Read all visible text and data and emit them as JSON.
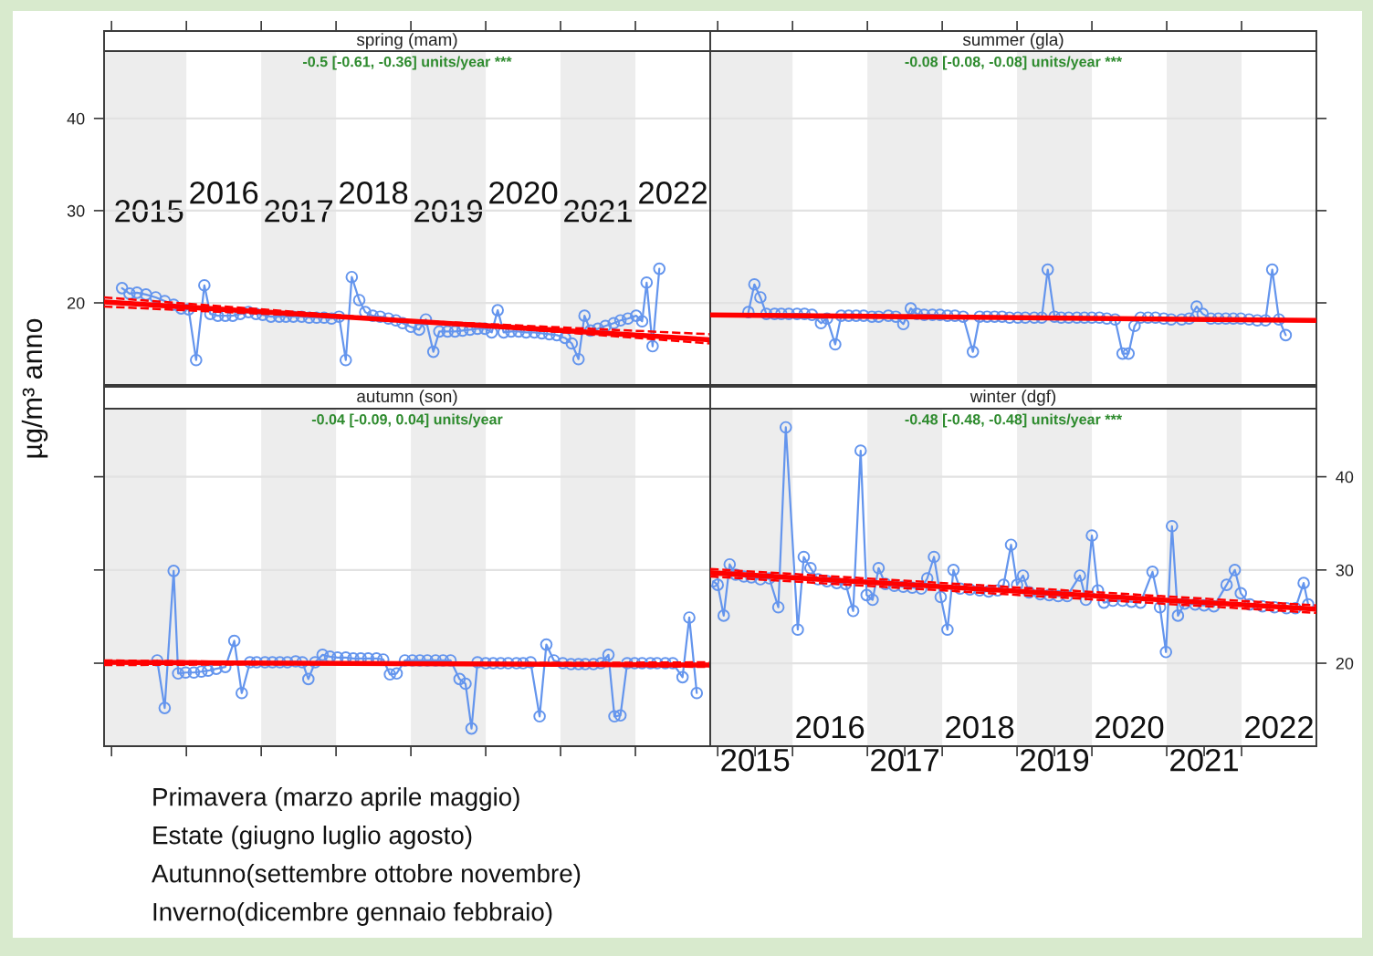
{
  "chart_data": [
    {
      "type": "line",
      "title": "spring (mam)",
      "subtitle": "-0.5 [-0.61, -0.36] units/year ***",
      "ylabel": "µg/m³ anno",
      "xlim": [
        2014.9,
        2023.0
      ],
      "xticks": [
        {
          "value": 2015,
          "label": null
        },
        {
          "value": 2015.5,
          "label": "2015"
        },
        {
          "value": 2016,
          "label": null
        },
        {
          "value": 2017,
          "label": null
        },
        {
          "value": 2017.5,
          "label": "2017"
        },
        {
          "value": 2018,
          "label": null
        },
        {
          "value": 2019,
          "label": null
        },
        {
          "value": 2019.5,
          "label": "2019"
        },
        {
          "value": 2020,
          "label": null
        },
        {
          "value": 2021,
          "label": null
        },
        {
          "value": 2021.5,
          "label": "2021"
        },
        {
          "value": 2022,
          "label": null
        }
      ],
      "x2lim": [
        2014.9,
        2023.0
      ],
      "x2ticks": [
        {
          "value": 2016.5,
          "label": "2016"
        },
        {
          "value": 2018.5,
          "label": "2018"
        },
        {
          "value": 2020.5,
          "label": "2020"
        },
        {
          "value": 2022.5,
          "label": "2022"
        }
      ],
      "ylim": [
        11.1,
        47.3
      ],
      "yticks": [
        20,
        30,
        40
      ],
      "grid": "y",
      "bands": [
        {
          "axis": "x",
          "from": 2014.9,
          "to": 2016,
          "color": "#ededed"
        },
        {
          "axis": "x",
          "from": 2017,
          "to": 2018,
          "color": "#ededed"
        },
        {
          "axis": "x",
          "from": 2019,
          "to": 2020,
          "color": "#ededed"
        },
        {
          "axis": "x",
          "from": 2021,
          "to": 2022,
          "color": "#ededed"
        }
      ],
      "series": [
        {
          "color": "#6495ed",
          "marker": "circle",
          "line_style": "solid",
          "x": [
            2015.14,
            2015.24,
            2015.34,
            2015.46,
            2015.59,
            2015.71,
            2015.83,
            2015.93,
            2016.03,
            2016.13,
            2016.24,
            2016.32,
            2016.42,
            2016.52,
            2016.62,
            2016.72,
            2016.83,
            2016.93,
            2017.02,
            2017.13,
            2017.24,
            2017.33,
            2017.43,
            2017.54,
            2017.64,
            2017.74,
            2017.84,
            2017.94,
            2018.04,
            2018.13,
            2018.21,
            2018.31,
            2018.39,
            2018.49,
            2018.59,
            2018.7,
            2018.8,
            2018.89,
            2019.0,
            2019.11,
            2019.2,
            2019.3,
            2019.38,
            2019.49,
            2019.59,
            2019.69,
            2019.79,
            2019.89,
            2019.99,
            2020.08,
            2020.16,
            2020.24,
            2020.34,
            2020.44,
            2020.54,
            2020.65,
            2020.75,
            2020.85,
            2020.95,
            2021.06,
            2021.15,
            2021.24,
            2021.32,
            2021.4,
            2021.5,
            2021.6,
            2021.71,
            2021.8,
            2021.9,
            2022.01,
            2022.09,
            2022.15,
            2022.23,
            2022.32
          ],
          "values": [
            21.6,
            21.0,
            21.1,
            20.9,
            20.6,
            20.2,
            19.8,
            19.4,
            19.3,
            13.8,
            21.9,
            18.8,
            18.6,
            18.6,
            18.6,
            18.8,
            19.0,
            18.8,
            18.7,
            18.5,
            18.5,
            18.5,
            18.5,
            18.5,
            18.4,
            18.4,
            18.4,
            18.3,
            18.5,
            13.8,
            22.8,
            20.3,
            19.0,
            18.6,
            18.5,
            18.3,
            18.1,
            17.8,
            17.4,
            17.1,
            18.2,
            14.7,
            16.9,
            16.9,
            16.9,
            17.0,
            17.1,
            17.2,
            17.2,
            16.8,
            19.2,
            16.8,
            16.9,
            16.9,
            16.8,
            16.8,
            16.7,
            16.6,
            16.5,
            16.2,
            15.6,
            13.9,
            18.6,
            17.0,
            17.2,
            17.5,
            17.8,
            18.1,
            18.3,
            18.6,
            18.0,
            22.2,
            15.3,
            23.7
          ]
        },
        {
          "color": "#ff0000",
          "marker": "none",
          "line_style": "solid",
          "x": [
            2014.9,
            2023.0
          ],
          "values": [
            20.1,
            16.0
          ]
        },
        {
          "color": "#ff0000",
          "marker": "none",
          "line_style": "dashed",
          "x": [
            2014.9,
            2023.0
          ],
          "values": [
            20.6,
            15.6
          ]
        },
        {
          "color": "#ff0000",
          "marker": "none",
          "line_style": "dashed",
          "x": [
            2014.9,
            2023.0
          ],
          "values": [
            19.6,
            16.6
          ]
        }
      ]
    },
    {
      "type": "line",
      "title": "summer (gla)",
      "subtitle": "-0.08 [-0.08, -0.08] units/year ***",
      "xlim": [
        2014.9,
        2023.0
      ],
      "xticks": [
        {
          "value": 2015,
          "label": null
        },
        {
          "value": 2016,
          "label": null
        },
        {
          "value": 2017,
          "label": null
        },
        {
          "value": 2018,
          "label": null
        },
        {
          "value": 2019,
          "label": null
        },
        {
          "value": 2020,
          "label": null
        },
        {
          "value": 2021,
          "label": null
        },
        {
          "value": 2022,
          "label": null
        }
      ],
      "ylim": [
        11.1,
        47.3
      ],
      "yticks": [
        20,
        30,
        40
      ],
      "tick_labels": false,
      "grid": "y",
      "bands": [
        {
          "axis": "x",
          "from": 2014.9,
          "to": 2016,
          "color": "#ededed"
        },
        {
          "axis": "x",
          "from": 2017,
          "to": 2018,
          "color": "#ededed"
        },
        {
          "axis": "x",
          "from": 2019,
          "to": 2020,
          "color": "#ededed"
        },
        {
          "axis": "x",
          "from": 2021,
          "to": 2022,
          "color": "#ededed"
        }
      ],
      "series": [
        {
          "color": "#6495ed",
          "marker": "circle",
          "line_style": "solid",
          "x": [
            2015.41,
            2015.49,
            2015.57,
            2015.65,
            2015.76,
            2015.85,
            2015.95,
            2016.06,
            2016.16,
            2016.26,
            2016.38,
            2016.46,
            2016.57,
            2016.65,
            2016.75,
            2016.85,
            2016.95,
            2017.06,
            2017.15,
            2017.28,
            2017.38,
            2017.48,
            2017.58,
            2017.66,
            2017.76,
            2017.87,
            2017.97,
            2018.07,
            2018.17,
            2018.28,
            2018.41,
            2018.5,
            2018.6,
            2018.7,
            2018.8,
            2018.9,
            2019.01,
            2019.11,
            2019.23,
            2019.33,
            2019.41,
            2019.5,
            2019.59,
            2019.69,
            2019.8,
            2019.9,
            2020.0,
            2020.1,
            2020.2,
            2020.31,
            2020.41,
            2020.49,
            2020.57,
            2020.65,
            2020.75,
            2020.85,
            2020.96,
            2021.06,
            2021.2,
            2021.3,
            2021.4,
            2021.48,
            2021.59,
            2021.69,
            2021.79,
            2021.89,
            2021.99,
            2022.1,
            2022.21,
            2022.32,
            2022.41,
            2022.5,
            2022.59
          ],
          "values": [
            19.0,
            22.0,
            20.6,
            18.8,
            18.8,
            18.8,
            18.8,
            18.8,
            18.8,
            18.7,
            17.8,
            18.3,
            15.5,
            18.6,
            18.6,
            18.6,
            18.6,
            18.5,
            18.5,
            18.6,
            18.5,
            17.7,
            19.4,
            18.8,
            18.7,
            18.7,
            18.7,
            18.6,
            18.6,
            18.5,
            14.7,
            18.5,
            18.5,
            18.5,
            18.5,
            18.4,
            18.4,
            18.4,
            18.4,
            18.4,
            23.6,
            18.5,
            18.4,
            18.4,
            18.4,
            18.4,
            18.4,
            18.4,
            18.3,
            18.2,
            14.5,
            14.5,
            17.5,
            18.4,
            18.4,
            18.4,
            18.3,
            18.2,
            18.2,
            18.3,
            19.6,
            18.8,
            18.3,
            18.3,
            18.3,
            18.3,
            18.3,
            18.2,
            18.1,
            18.1,
            23.6,
            18.2,
            16.5
          ]
        },
        {
          "color": "#ff0000",
          "marker": "none",
          "line_style": "solid",
          "x": [
            2014.9,
            2023.0
          ],
          "values": [
            18.7,
            18.1
          ]
        }
      ]
    },
    {
      "type": "line",
      "title": "autumn (son)",
      "subtitle": "-0.04 [-0.09, 0.04] units/year",
      "xlim": [
        2014.9,
        2023.0
      ],
      "xticks": [
        {
          "value": 2015,
          "label": null
        },
        {
          "value": 2016,
          "label": null
        },
        {
          "value": 2017,
          "label": null
        },
        {
          "value": 2018,
          "label": null
        },
        {
          "value": 2019,
          "label": null
        },
        {
          "value": 2020,
          "label": null
        },
        {
          "value": 2021,
          "label": null
        },
        {
          "value": 2022,
          "label": null
        }
      ],
      "ylim": [
        11.1,
        47.3
      ],
      "yticks": [
        20,
        30,
        40
      ],
      "tick_labels": false,
      "grid": "y",
      "bands": [
        {
          "axis": "x",
          "from": 2014.9,
          "to": 2016,
          "color": "#ededed"
        },
        {
          "axis": "x",
          "from": 2017,
          "to": 2018,
          "color": "#ededed"
        },
        {
          "axis": "x",
          "from": 2019,
          "to": 2020,
          "color": "#ededed"
        },
        {
          "axis": "x",
          "from": 2021,
          "to": 2022,
          "color": "#ededed"
        }
      ],
      "series": [
        {
          "color": "#6495ed",
          "marker": "circle",
          "line_style": "solid",
          "x": [
            2015.61,
            2015.71,
            2015.83,
            2015.89,
            2015.99,
            2016.1,
            2016.2,
            2016.29,
            2016.4,
            2016.52,
            2016.64,
            2016.74,
            2016.85,
            2016.94,
            2017.05,
            2017.15,
            2017.25,
            2017.35,
            2017.46,
            2017.55,
            2017.63,
            2017.72,
            2017.82,
            2017.92,
            2018.02,
            2018.13,
            2018.23,
            2018.33,
            2018.43,
            2018.54,
            2018.63,
            2018.72,
            2018.81,
            2018.92,
            2019.02,
            2019.12,
            2019.22,
            2019.33,
            2019.43,
            2019.53,
            2019.65,
            2019.73,
            2019.81,
            2019.89,
            2020.0,
            2020.1,
            2020.2,
            2020.3,
            2020.41,
            2020.5,
            2020.6,
            2020.72,
            2020.81,
            2020.91,
            2021.03,
            2021.14,
            2021.24,
            2021.33,
            2021.44,
            2021.54,
            2021.64,
            2021.72,
            2021.8,
            2021.89,
            2021.99,
            2022.09,
            2022.2,
            2022.29,
            2022.4,
            2022.5,
            2022.63,
            2022.72,
            2022.82
          ],
          "values": [
            20.3,
            15.2,
            29.9,
            18.9,
            19.0,
            19.0,
            19.1,
            19.2,
            19.4,
            19.6,
            22.4,
            16.8,
            20.1,
            20.1,
            20.1,
            20.1,
            20.1,
            20.1,
            20.2,
            20.1,
            18.3,
            20.1,
            20.9,
            20.7,
            20.6,
            20.6,
            20.5,
            20.5,
            20.5,
            20.5,
            20.4,
            18.8,
            18.9,
            20.3,
            20.3,
            20.3,
            20.3,
            20.3,
            20.3,
            20.3,
            18.3,
            17.8,
            13.0,
            20.1,
            20.0,
            20.0,
            20.0,
            20.0,
            20.0,
            20.0,
            20.1,
            14.3,
            22.0,
            20.3,
            20.0,
            19.9,
            19.9,
            19.9,
            19.9,
            20.0,
            20.9,
            14.3,
            14.4,
            20.0,
            20.0,
            20.0,
            20.0,
            20.0,
            20.0,
            20.0,
            18.5,
            24.9,
            16.8
          ]
        },
        {
          "color": "#ff0000",
          "marker": "none",
          "line_style": "solid",
          "x": [
            2014.9,
            2023.0
          ],
          "values": [
            20.1,
            19.8
          ]
        },
        {
          "color": "#ff0000",
          "marker": "none",
          "line_style": "dashed",
          "x": [
            2014.9,
            2023.0
          ],
          "values": [
            20.3,
            19.6
          ]
        },
        {
          "color": "#ff0000",
          "marker": "none",
          "line_style": "dashed",
          "x": [
            2014.9,
            2023.0
          ],
          "values": [
            19.8,
            20.1
          ]
        }
      ],
      "annotations": [
        "Primavera (marzo aprile maggio)",
        "Estate (giugno luglio agosto)",
        "Autunno(settembre ottobre novembre)",
        "Inverno(dicembre gennaio febbraio)"
      ]
    },
    {
      "type": "line",
      "title": "winter (dgf)",
      "subtitle": "-0.48 [-0.48, -0.48] units/year ***",
      "xlim": [
        2014.9,
        2023.0
      ],
      "xticks": [
        {
          "value": 2015,
          "label": null
        },
        {
          "value": 2015.5,
          "label": "2015"
        },
        {
          "value": 2016,
          "label": null
        },
        {
          "value": 2017,
          "label": null
        },
        {
          "value": 2017.5,
          "label": "2017"
        },
        {
          "value": 2018,
          "label": null
        },
        {
          "value": 2019,
          "label": null
        },
        {
          "value": 2019.5,
          "label": "2019"
        },
        {
          "value": 2020,
          "label": null
        },
        {
          "value": 2021,
          "label": null
        },
        {
          "value": 2021.5,
          "label": "2021"
        },
        {
          "value": 2022,
          "label": null
        }
      ],
      "x2lim": [
        2014.9,
        2023.0
      ],
      "x2ticks": [
        {
          "value": 2016.5,
          "label": "2016"
        },
        {
          "value": 2018.5,
          "label": "2018"
        },
        {
          "value": 2020.5,
          "label": "2020"
        },
        {
          "value": 2022.5,
          "label": "2022"
        }
      ],
      "ylim": [
        11.1,
        47.3
      ],
      "yticks": [
        20,
        30,
        40
      ],
      "grid": "y",
      "bands": [
        {
          "axis": "x",
          "from": 2014.9,
          "to": 2016,
          "color": "#ededed"
        },
        {
          "axis": "x",
          "from": 2017,
          "to": 2018,
          "color": "#ededed"
        },
        {
          "axis": "x",
          "from": 2019,
          "to": 2020,
          "color": "#ededed"
        },
        {
          "axis": "x",
          "from": 2021,
          "to": 2022,
          "color": "#ededed"
        }
      ],
      "series": [
        {
          "color": "#6495ed",
          "marker": "circle",
          "line_style": "solid",
          "x": [
            2014.94,
            2015.0,
            2015.08,
            2015.16,
            2015.24,
            2015.35,
            2015.45,
            2015.57,
            2015.69,
            2015.81,
            2015.91,
            2016.07,
            2016.15,
            2016.24,
            2016.34,
            2016.46,
            2016.59,
            2016.71,
            2016.81,
            2016.91,
            2016.99,
            2017.07,
            2017.15,
            2017.24,
            2017.36,
            2017.48,
            2017.6,
            2017.72,
            2017.8,
            2017.89,
            2017.98,
            2018.07,
            2018.15,
            2018.24,
            2018.37,
            2018.5,
            2018.62,
            2018.74,
            2018.82,
            2018.92,
            2019.0,
            2019.08,
            2019.16,
            2019.31,
            2019.43,
            2019.55,
            2019.67,
            2019.84,
            2019.92,
            2020.0,
            2020.08,
            2020.16,
            2020.28,
            2020.41,
            2020.53,
            2020.65,
            2020.81,
            2020.91,
            2020.99,
            2021.07,
            2021.15,
            2021.24,
            2021.38,
            2021.5,
            2021.63,
            2021.8,
            2021.91,
            2021.99,
            2022.11,
            2022.28,
            2022.44,
            2022.6,
            2022.72,
            2022.83,
            2022.89
          ],
          "values": [
            28.8,
            28.4,
            25.1,
            30.6,
            29.5,
            29.3,
            29.2,
            29.0,
            29.1,
            26.0,
            45.3,
            23.6,
            31.4,
            30.2,
            29.0,
            28.8,
            28.6,
            28.5,
            25.6,
            42.8,
            27.3,
            26.8,
            30.2,
            28.5,
            28.3,
            28.2,
            28.1,
            28.0,
            29.1,
            31.4,
            27.1,
            23.6,
            30.0,
            28.0,
            27.9,
            27.8,
            27.7,
            27.8,
            28.4,
            32.7,
            28.4,
            29.4,
            27.6,
            27.4,
            27.3,
            27.2,
            27.2,
            29.4,
            26.8,
            33.7,
            27.8,
            26.5,
            26.7,
            26.7,
            26.6,
            26.5,
            29.8,
            26.0,
            21.2,
            34.7,
            25.1,
            26.4,
            26.3,
            26.2,
            26.1,
            28.4,
            30.0,
            27.5,
            26.3,
            26.1,
            26.0,
            25.9,
            25.9,
            28.6,
            26.3
          ]
        },
        {
          "color": "#ff0000",
          "marker": "none",
          "line_style": "solid",
          "x": [
            2014.9,
            2023.0
          ],
          "values": [
            29.7,
            25.8
          ]
        },
        {
          "color": "#ff0000",
          "marker": "none",
          "line_style": "dashed",
          "x": [
            2014.9,
            2023.0
          ],
          "values": [
            30.1,
            26.2
          ]
        },
        {
          "color": "#ff0000",
          "marker": "none",
          "line_style": "dashed",
          "x": [
            2014.9,
            2023.0
          ],
          "values": [
            29.3,
            25.4
          ]
        }
      ]
    }
  ]
}
